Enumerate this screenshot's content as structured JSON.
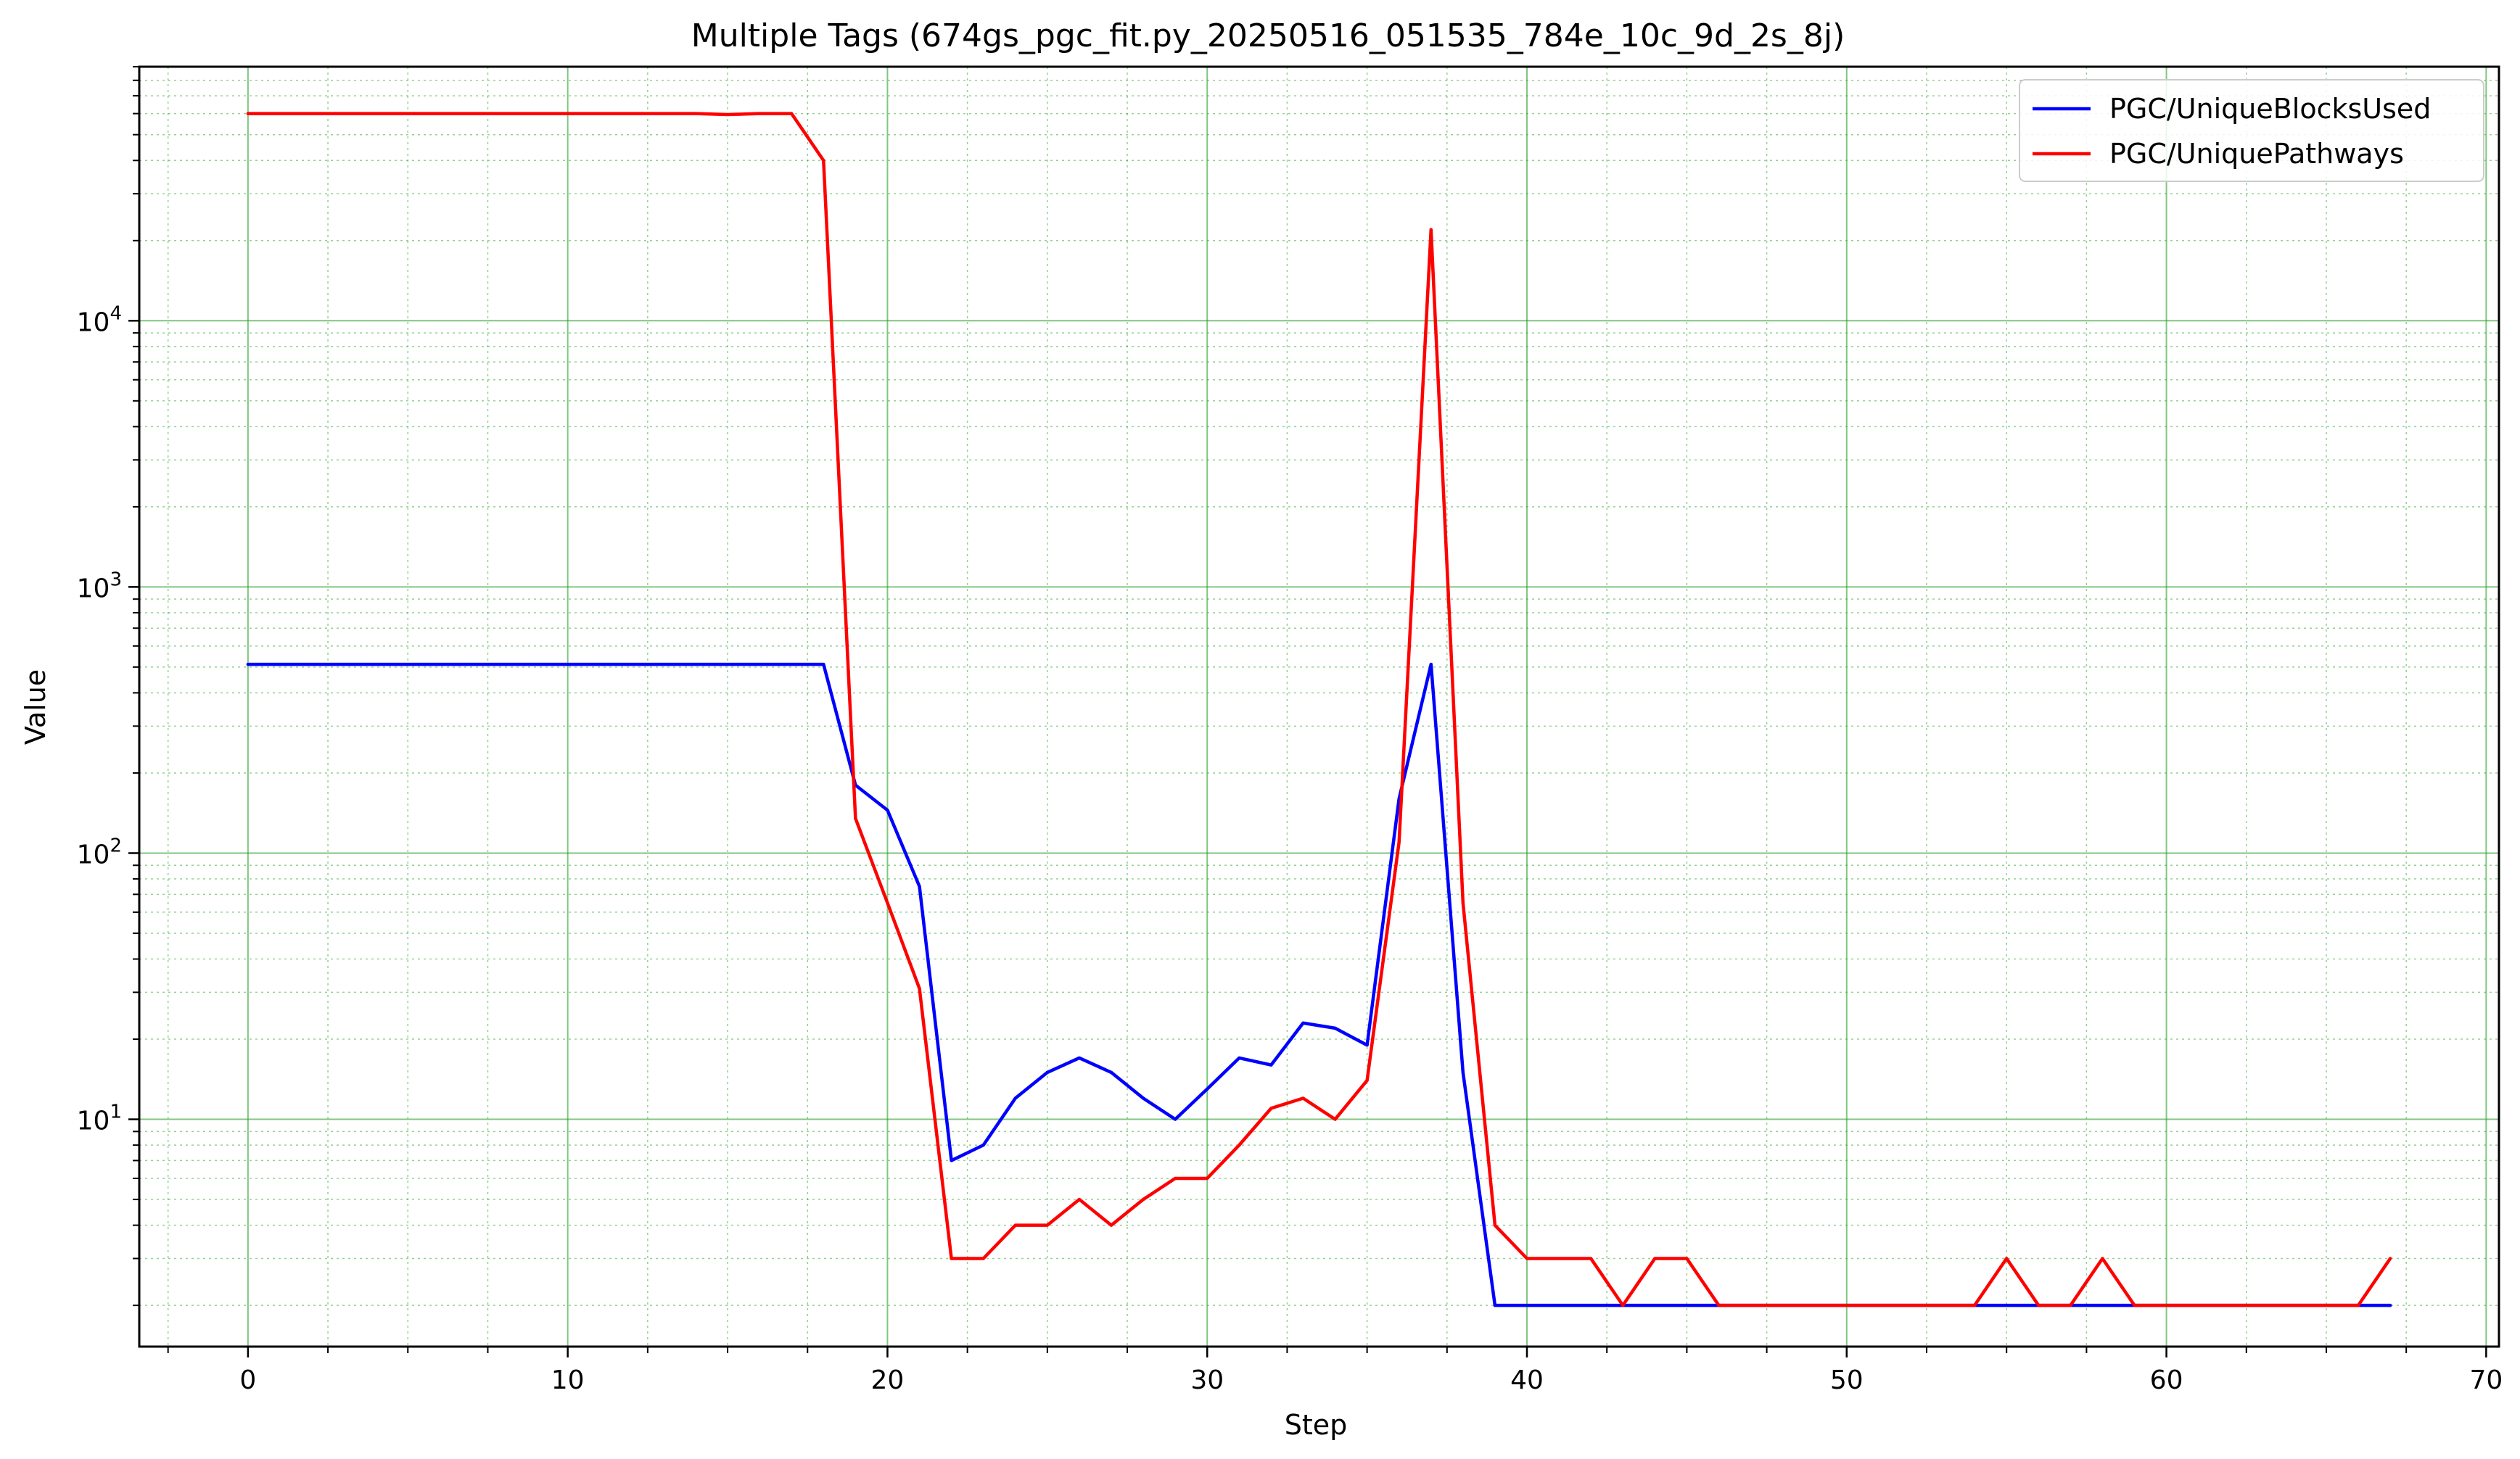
{
  "chart_data": {
    "type": "line",
    "title": "Multiple Tags (674gs_pgc_fit.py_20250516_051535_784e_10c_9d_2s_8j)",
    "xlabel": "Step",
    "ylabel": "Value",
    "xlim": [
      -3.4,
      70.4
    ],
    "ylim": [
      1.4,
      90000
    ],
    "yscale": "log",
    "x_ticks": [
      0,
      10,
      20,
      30,
      40,
      50,
      60,
      70
    ],
    "x_tick_labels": [
      "0",
      "10",
      "20",
      "30",
      "40",
      "50",
      "60",
      "70"
    ],
    "y_ticks": [
      10,
      100,
      1000,
      10000
    ],
    "y_tick_labels": [
      {
        "base": "10",
        "exp": "1"
      },
      {
        "base": "10",
        "exp": "2"
      },
      {
        "base": "10",
        "exp": "3"
      },
      {
        "base": "10",
        "exp": "4"
      }
    ],
    "grid": true,
    "grid_color": "#2ca02c",
    "legend_position": "top-right",
    "x": [
      0,
      1,
      2,
      3,
      4,
      5,
      6,
      7,
      8,
      9,
      10,
      11,
      12,
      13,
      14,
      15,
      16,
      17,
      18,
      19,
      20,
      21,
      22,
      23,
      24,
      25,
      26,
      27,
      28,
      29,
      30,
      31,
      32,
      33,
      34,
      35,
      36,
      37,
      38,
      39,
      40,
      41,
      42,
      43,
      44,
      45,
      46,
      47,
      48,
      49,
      50,
      51,
      52,
      53,
      54,
      55,
      56,
      57,
      58,
      59,
      60,
      61,
      62,
      63,
      64,
      65,
      66,
      67
    ],
    "series": [
      {
        "name": "PGC/UniqueBlocksUsed",
        "color": "#0000ff",
        "values": [
          512,
          512,
          512,
          512,
          512,
          512,
          512,
          512,
          512,
          512,
          512,
          512,
          512,
          512,
          512,
          512,
          512,
          512,
          512,
          180,
          145,
          75,
          7,
          8,
          12,
          15,
          17,
          15,
          12,
          10,
          13,
          17,
          16,
          23,
          22,
          19,
          160,
          512,
          15,
          2,
          2,
          2,
          2,
          2,
          2,
          2,
          2,
          2,
          2,
          2,
          2,
          2,
          2,
          2,
          2,
          2,
          2,
          2,
          2,
          2,
          2,
          2,
          2,
          2,
          2,
          2,
          2,
          2
        ]
      },
      {
        "name": "PGC/UniquePathways",
        "color": "#ff0000",
        "values": [
          60000,
          60000,
          60000,
          60000,
          60000,
          60000,
          60000,
          60000,
          60000,
          60000,
          60000,
          60000,
          60000,
          60000,
          60000,
          59500,
          60000,
          60000,
          40000,
          135,
          65,
          31,
          3,
          3,
          4,
          4,
          5,
          4,
          5,
          6,
          6,
          8,
          11,
          12,
          10,
          14,
          110,
          22000,
          65,
          4,
          3,
          3,
          3,
          2,
          3,
          3,
          2,
          2,
          2,
          2,
          2,
          2,
          2,
          2,
          2,
          3,
          2,
          2,
          3,
          2,
          2,
          2,
          2,
          2,
          2,
          2,
          2,
          3
        ]
      }
    ]
  }
}
